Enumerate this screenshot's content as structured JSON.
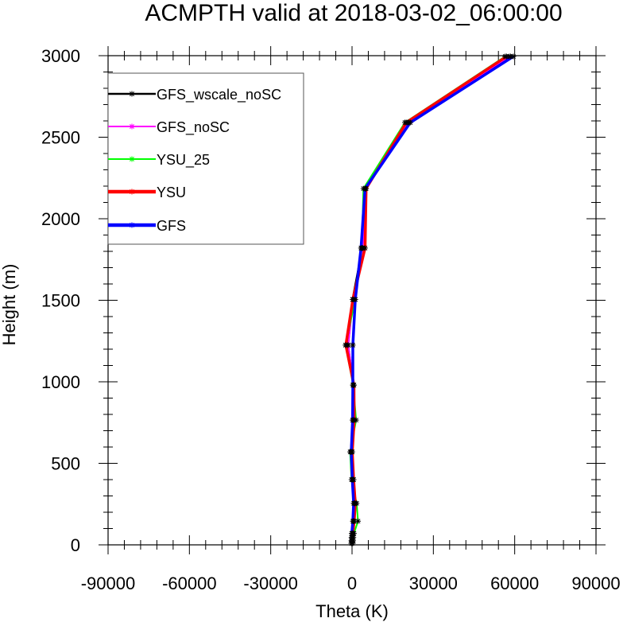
{
  "chart_data": {
    "type": "line",
    "title": "ACMPTH valid at 2018-03-02_06:00:00",
    "xlabel": "Theta (K)",
    "ylabel": "Height (m)",
    "xlim": [
      -90000,
      90000
    ],
    "ylim": [
      0,
      3000
    ],
    "x_ticks": [
      -90000,
      -60000,
      -30000,
      0,
      30000,
      60000,
      90000
    ],
    "x_tick_labels": [
      "-90000",
      "-60000",
      "-30000",
      "0",
      "30000",
      "60000",
      "90000"
    ],
    "y_ticks": [
      0,
      500,
      1000,
      1500,
      2000,
      2500,
      3000
    ],
    "y_tick_labels": [
      "0",
      "500",
      "1000",
      "1500",
      "2000",
      "2500",
      "3000"
    ],
    "grid": false,
    "legend_position": "top-left",
    "marker": "asterisk",
    "heights": [
      10,
      25,
      45,
      70,
      145,
      255,
      400,
      570,
      765,
      980,
      1225,
      1505,
      1820,
      2185,
      2590,
      2995
    ],
    "series": [
      {
        "name": "GFS_wscale_noSC",
        "color": "#000000",
        "line_width": 2.5,
        "x": [
          -200,
          -150,
          -100,
          -50,
          500,
          800,
          200,
          -400,
          300,
          500,
          -1500,
          200,
          3800,
          4800,
          21000,
          58500
        ]
      },
      {
        "name": "GFS_noSC",
        "color": "#ff00ff",
        "line_width": 2,
        "x": [
          -150,
          -100,
          -50,
          0,
          600,
          900,
          300,
          -300,
          400,
          600,
          -1400,
          400,
          4000,
          5000,
          20500,
          58000
        ]
      },
      {
        "name": "YSU_25",
        "color": "#00ff00",
        "line_width": 2,
        "x": [
          300,
          400,
          500,
          700,
          2200,
          1700,
          -200,
          -700,
          1500,
          400,
          -2400,
          1200,
          3600,
          4200,
          19500,
          56500
        ]
      },
      {
        "name": "YSU",
        "color": "#ff0000",
        "line_width": 3.5,
        "x": [
          0,
          100,
          200,
          300,
          800,
          1200,
          600,
          100,
          800,
          700,
          -2300,
          300,
          4800,
          5200,
          20000,
          57000
        ]
      },
      {
        "name": "GFS",
        "color": "#0000ff",
        "line_width": 3.5,
        "x": [
          -300,
          -250,
          -200,
          -100,
          300,
          600,
          100,
          -300,
          200,
          300,
          300,
          1200,
          3300,
          4800,
          21500,
          59500
        ]
      }
    ]
  }
}
